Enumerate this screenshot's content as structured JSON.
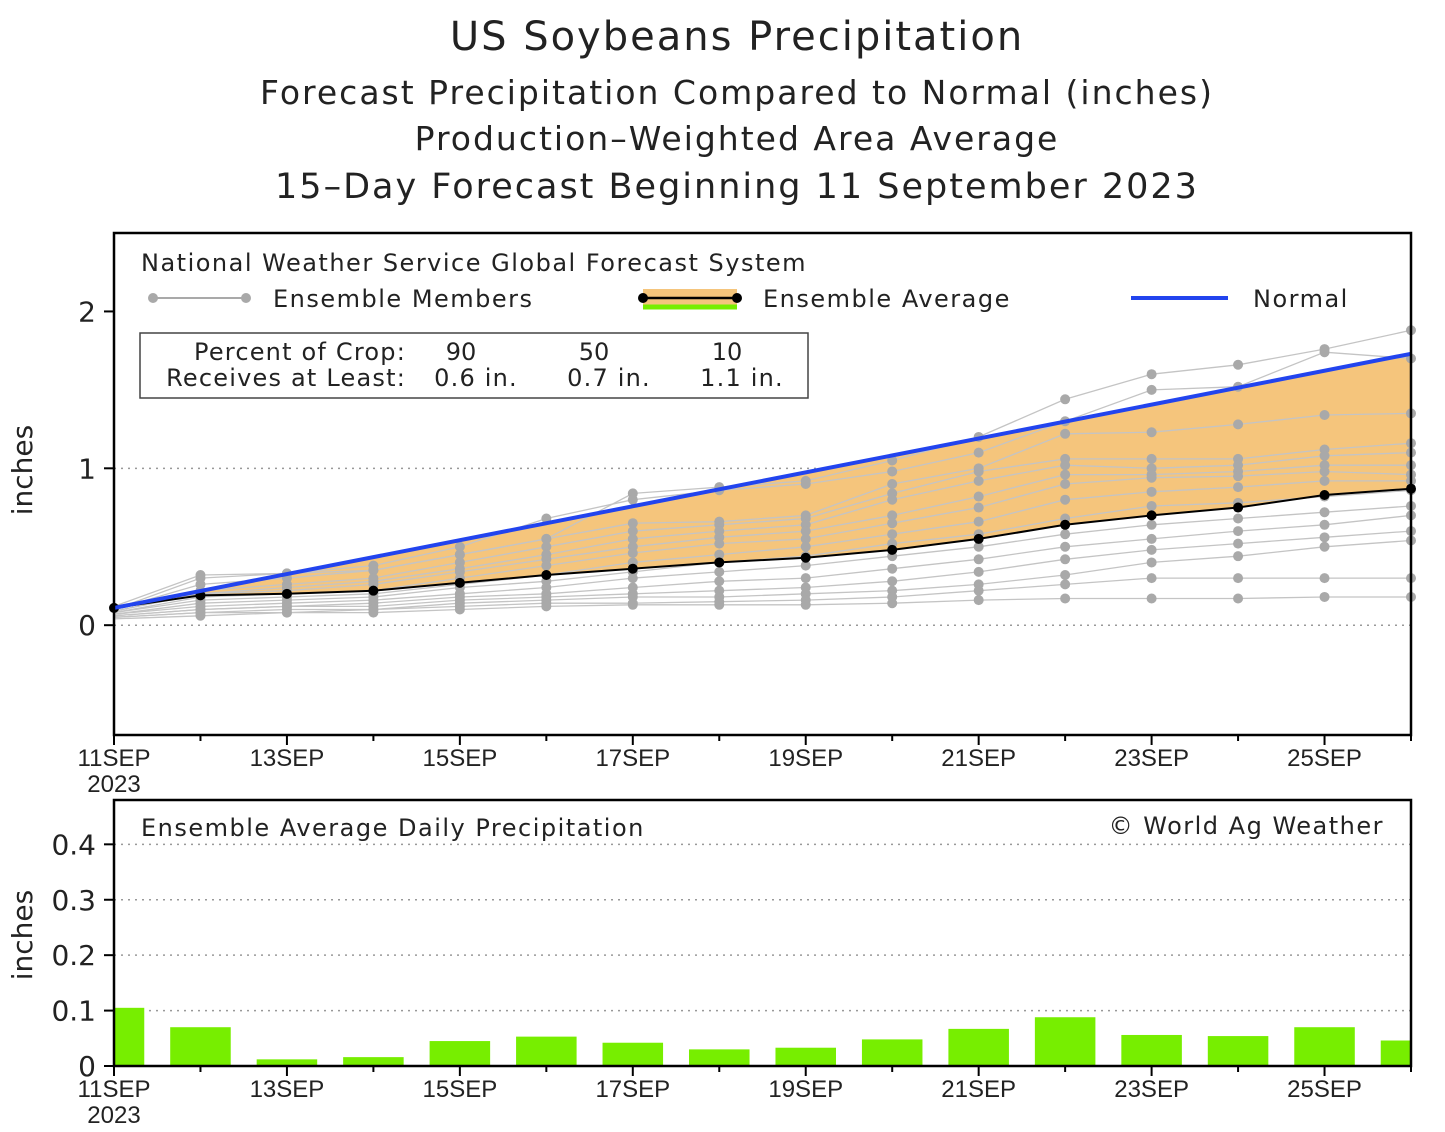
{
  "titles": {
    "t1": "US Soybeans Precipitation",
    "t2": "Forecast Precipitation Compared to Normal (inches)",
    "t3": "Production–Weighted Area Average",
    "t4": "15–Day Forecast Beginning 11 September 2023"
  },
  "legend": {
    "system": "National Weather Service Global Forecast System",
    "members": "Ensemble Members",
    "average": "Ensemble Average",
    "normal": "Normal"
  },
  "crop_table": {
    "row1_label": "Percent of Crop:",
    "row2_label": "Receives at Least:",
    "percents": [
      "90",
      "50",
      "10"
    ],
    "amounts": [
      "0.6 in.",
      "0.7 in.",
      "1.1 in."
    ]
  },
  "bottom_panel": {
    "title": "Ensemble Average Daily Precipitation",
    "credit": "© World Ag Weather"
  },
  "x_axis": {
    "ticks": [
      "11SEP",
      "13SEP",
      "15SEP",
      "17SEP",
      "19SEP",
      "21SEP",
      "23SEP",
      "25SEP"
    ],
    "year": "2023"
  },
  "colors": {
    "normal": "#2244ee",
    "fill": "#f5c57c",
    "member": "#a9a9a9",
    "bar": "#77ee00"
  },
  "chart_data": [
    {
      "type": "line",
      "title": "Forecast Precipitation Compared to Normal (inches)",
      "ylabel": "inches",
      "xlabel": "",
      "ylim": [
        -0.7,
        2.5
      ],
      "xlim": [
        0,
        15
      ],
      "yticks": [
        0,
        1,
        2
      ],
      "x_days": [
        "11SEP",
        "12SEP",
        "13SEP",
        "14SEP",
        "15SEP",
        "16SEP",
        "17SEP",
        "18SEP",
        "19SEP",
        "20SEP",
        "21SEP",
        "22SEP",
        "23SEP",
        "24SEP",
        "25SEP",
        "26SEP"
      ],
      "series": [
        {
          "name": "Normal",
          "x": [
            0,
            15
          ],
          "values": [
            0.11,
            1.73
          ]
        },
        {
          "name": "Ensemble Average",
          "values": [
            0.11,
            0.19,
            0.2,
            0.22,
            0.27,
            0.32,
            0.36,
            0.4,
            0.43,
            0.48,
            0.55,
            0.64,
            0.7,
            0.75,
            0.83,
            0.87
          ]
        }
      ],
      "ensemble_members": [
        [
          0.1,
          0.3,
          0.33,
          0.35,
          0.45,
          0.55,
          0.84,
          0.88,
          0.92,
          1.05,
          1.2,
          1.44,
          1.6,
          1.66,
          1.76,
          1.88
        ],
        [
          0.12,
          0.32,
          0.33,
          0.38,
          0.5,
          0.68,
          0.8,
          0.86,
          0.9,
          0.98,
          1.1,
          1.3,
          1.5,
          1.52,
          1.74,
          1.7
        ],
        [
          0.1,
          0.26,
          0.3,
          0.35,
          0.45,
          0.55,
          0.65,
          0.66,
          0.7,
          0.9,
          1.0,
          1.22,
          1.23,
          1.28,
          1.34,
          1.35
        ],
        [
          0.1,
          0.22,
          0.26,
          0.3,
          0.4,
          0.5,
          0.6,
          0.64,
          0.68,
          0.84,
          0.98,
          1.06,
          1.06,
          1.06,
          1.12,
          1.16
        ],
        [
          0.09,
          0.2,
          0.24,
          0.28,
          0.36,
          0.45,
          0.55,
          0.6,
          0.64,
          0.8,
          0.92,
          1.02,
          1.0,
          1.02,
          1.08,
          1.1
        ],
        [
          0.09,
          0.2,
          0.22,
          0.26,
          0.34,
          0.42,
          0.5,
          0.56,
          0.6,
          0.7,
          0.82,
          0.96,
          0.96,
          0.98,
          1.02,
          1.02
        ],
        [
          0.08,
          0.18,
          0.2,
          0.22,
          0.3,
          0.38,
          0.46,
          0.52,
          0.55,
          0.65,
          0.75,
          0.9,
          0.94,
          0.95,
          0.98,
          0.96
        ],
        [
          0.08,
          0.16,
          0.18,
          0.2,
          0.26,
          0.32,
          0.4,
          0.45,
          0.5,
          0.58,
          0.66,
          0.8,
          0.85,
          0.88,
          0.92,
          0.92
        ],
        [
          0.07,
          0.14,
          0.16,
          0.18,
          0.24,
          0.28,
          0.34,
          0.4,
          0.44,
          0.52,
          0.58,
          0.68,
          0.76,
          0.78,
          0.82,
          0.86
        ],
        [
          0.07,
          0.12,
          0.14,
          0.16,
          0.2,
          0.24,
          0.3,
          0.34,
          0.38,
          0.44,
          0.5,
          0.58,
          0.64,
          0.68,
          0.72,
          0.76
        ],
        [
          0.06,
          0.1,
          0.12,
          0.14,
          0.18,
          0.2,
          0.24,
          0.28,
          0.3,
          0.36,
          0.42,
          0.5,
          0.55,
          0.6,
          0.64,
          0.7
        ],
        [
          0.06,
          0.1,
          0.12,
          0.12,
          0.16,
          0.18,
          0.2,
          0.22,
          0.24,
          0.28,
          0.34,
          0.42,
          0.48,
          0.52,
          0.56,
          0.6
        ],
        [
          0.05,
          0.08,
          0.1,
          0.1,
          0.14,
          0.16,
          0.18,
          0.18,
          0.2,
          0.22,
          0.26,
          0.32,
          0.4,
          0.44,
          0.5,
          0.54
        ],
        [
          0.05,
          0.08,
          0.08,
          0.1,
          0.12,
          0.14,
          0.14,
          0.15,
          0.16,
          0.18,
          0.22,
          0.26,
          0.3,
          0.3,
          0.3,
          0.3
        ],
        [
          0.04,
          0.06,
          0.08,
          0.08,
          0.1,
          0.12,
          0.13,
          0.13,
          0.13,
          0.14,
          0.16,
          0.17,
          0.17,
          0.17,
          0.18,
          0.18
        ]
      ]
    },
    {
      "type": "bar",
      "title": "Ensemble Average Daily Precipitation",
      "ylabel": "inches",
      "xlabel": "",
      "ylim": [
        0,
        0.48
      ],
      "yticks": [
        0,
        0.1,
        0.2,
        0.3,
        0.4
      ],
      "categories": [
        "11SEP",
        "12SEP",
        "13SEP",
        "14SEP",
        "15SEP",
        "16SEP",
        "17SEP",
        "18SEP",
        "19SEP",
        "20SEP",
        "21SEP",
        "22SEP",
        "23SEP",
        "24SEP",
        "25SEP",
        "26SEP"
      ],
      "values": [
        0.105,
        0.07,
        0.012,
        0.016,
        0.045,
        0.053,
        0.042,
        0.03,
        0.033,
        0.048,
        0.067,
        0.088,
        0.056,
        0.054,
        0.07,
        0.046
      ]
    }
  ]
}
